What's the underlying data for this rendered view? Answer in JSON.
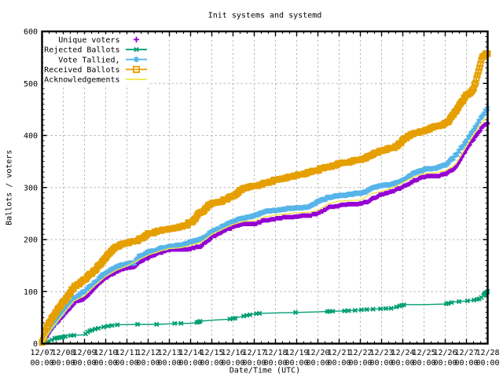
{
  "chart_data": {
    "type": "line",
    "title": "Init systems and systemd",
    "xlabel": "Date/Time (UTC)",
    "ylabel": "Ballots / voters",
    "ylim": [
      0,
      600
    ],
    "y_major_step": 100,
    "y_minor_step": 10,
    "x_minor_per_day": 3,
    "grid": "dashed gray on major ticks",
    "legend_position": "top-left inside",
    "x_unit": "days since 12/07 00:00 UTC",
    "x_ticks": [
      {
        "day": 0,
        "label": "12/07",
        "sub": "00:00"
      },
      {
        "day": 1,
        "label": "12/08",
        "sub": "00:00"
      },
      {
        "day": 2,
        "label": "12/09",
        "sub": "00:00"
      },
      {
        "day": 3,
        "label": "12/10",
        "sub": "00:00"
      },
      {
        "day": 4,
        "label": "12/11",
        "sub": "00:00"
      },
      {
        "day": 5,
        "label": "12/12",
        "sub": "00:00"
      },
      {
        "day": 6,
        "label": "12/13",
        "sub": "00:00"
      },
      {
        "day": 7,
        "label": "12/14",
        "sub": "00:00"
      },
      {
        "day": 8,
        "label": "12/15",
        "sub": "00:00"
      },
      {
        "day": 9,
        "label": "12/16",
        "sub": "00:00"
      },
      {
        "day": 10,
        "label": "12/17",
        "sub": "00:00"
      },
      {
        "day": 11,
        "label": "12/18",
        "sub": "00:00"
      },
      {
        "day": 12,
        "label": "12/19",
        "sub": "00:00"
      },
      {
        "day": 13,
        "label": "12/20",
        "sub": "00:00"
      },
      {
        "day": 14,
        "label": "12/21",
        "sub": "00:00"
      },
      {
        "day": 15,
        "label": "12/22",
        "sub": "00:00"
      },
      {
        "day": 16,
        "label": "12/23",
        "sub": "00:00"
      },
      {
        "day": 17,
        "label": "12/24",
        "sub": "00:00"
      },
      {
        "day": 18,
        "label": "12/25",
        "sub": "00:00"
      },
      {
        "day": 19,
        "label": "12/26",
        "sub": "00:00"
      },
      {
        "day": 20,
        "label": "12/27",
        "sub": "00:00"
      },
      {
        "day": 21,
        "label": "12/28",
        "sub": "00:00"
      }
    ],
    "y_ticks": [
      0,
      100,
      200,
      300,
      400,
      500,
      600
    ],
    "series": [
      {
        "name": "Unique voters",
        "color": "#9400d3",
        "marker": "plus",
        "line": true,
        "dense_markers": true,
        "points": [
          [
            0,
            0
          ],
          [
            0.02,
            1
          ],
          [
            0.25,
            14
          ],
          [
            0.5,
            31
          ],
          [
            0.75,
            43
          ],
          [
            1.0,
            54
          ],
          [
            1.5,
            78
          ],
          [
            2.0,
            86
          ],
          [
            2.5,
            109
          ],
          [
            3.0,
            126
          ],
          [
            3.5,
            137
          ],
          [
            4.0,
            145
          ],
          [
            4.35,
            146
          ],
          [
            4.5,
            154
          ],
          [
            5.0,
            166
          ],
          [
            5.5,
            174
          ],
          [
            6.0,
            179
          ],
          [
            6.5,
            180
          ],
          [
            7.0,
            182
          ],
          [
            7.5,
            188
          ],
          [
            8.0,
            204
          ],
          [
            8.5,
            215
          ],
          [
            9.0,
            224
          ],
          [
            9.5,
            229
          ],
          [
            10.0,
            229
          ],
          [
            10.5,
            237
          ],
          [
            11.0,
            239
          ],
          [
            11.5,
            242
          ],
          [
            12.0,
            244
          ],
          [
            12.5,
            244
          ],
          [
            13.0,
            250
          ],
          [
            13.5,
            261
          ],
          [
            14.0,
            265
          ],
          [
            14.5,
            266
          ],
          [
            15.0,
            267
          ],
          [
            15.5,
            277
          ],
          [
            16.0,
            286
          ],
          [
            16.5,
            291
          ],
          [
            17.0,
            301
          ],
          [
            17.5,
            312
          ],
          [
            18.0,
            320
          ],
          [
            18.5,
            320
          ],
          [
            19.0,
            325
          ],
          [
            19.5,
            339
          ],
          [
            20.0,
            373
          ],
          [
            20.25,
            390
          ],
          [
            20.5,
            401
          ],
          [
            20.75,
            417
          ],
          [
            21.0,
            424
          ]
        ]
      },
      {
        "name": "Rejected Ballots",
        "color": "#009e73",
        "marker": "cross",
        "line": true,
        "dense_markers": false,
        "points": [
          [
            0,
            0
          ],
          [
            0.1,
            2
          ],
          [
            0.35,
            5
          ],
          [
            0.6,
            10
          ],
          [
            1.0,
            13
          ],
          [
            1.2,
            15
          ],
          [
            1.5,
            16
          ],
          [
            2.0,
            17
          ],
          [
            2.2,
            24
          ],
          [
            2.5,
            28
          ],
          [
            3.0,
            33
          ],
          [
            3.5,
            36
          ],
          [
            4.5,
            37
          ],
          [
            5.4,
            37
          ],
          [
            6.0,
            38
          ],
          [
            6.3,
            39
          ],
          [
            7.0,
            39
          ],
          [
            7.35,
            41
          ],
          [
            7.45,
            43
          ],
          [
            8.0,
            45
          ],
          [
            8.8,
            47
          ],
          [
            9.1,
            49
          ],
          [
            9.6,
            54
          ],
          [
            10.15,
            58
          ],
          [
            11.0,
            59
          ],
          [
            12.0,
            60
          ],
          [
            13.0,
            61
          ],
          [
            13.6,
            62
          ],
          [
            14.3,
            63
          ],
          [
            14.8,
            64
          ],
          [
            15.05,
            65
          ],
          [
            15.5,
            66
          ],
          [
            16.0,
            67
          ],
          [
            16.5,
            68
          ],
          [
            16.9,
            73
          ],
          [
            17.1,
            75
          ],
          [
            18.0,
            75
          ],
          [
            19.0,
            76
          ],
          [
            19.4,
            80
          ],
          [
            20.0,
            82
          ],
          [
            20.4,
            84
          ],
          [
            20.6,
            86
          ],
          [
            20.75,
            90
          ],
          [
            20.85,
            95
          ],
          [
            21.0,
            100
          ]
        ],
        "marker_days": [
          0.05,
          0.25,
          0.45,
          0.6,
          0.7,
          0.8,
          0.9,
          1.0,
          1.1,
          1.35,
          1.5,
          2.05,
          2.15,
          2.25,
          2.35,
          2.5,
          2.65,
          2.9,
          3.1,
          3.3,
          3.55,
          4.5,
          5.4,
          6.25,
          6.55,
          7.3,
          7.38,
          7.45,
          8.85,
          9.0,
          9.1,
          9.5,
          9.65,
          9.8,
          10.1,
          10.25,
          11.95,
          13.45,
          13.55,
          13.7,
          14.25,
          14.45,
          14.75,
          15.05,
          15.3,
          15.6,
          15.95,
          16.2,
          16.45,
          16.7,
          16.85,
          16.95,
          17.05,
          19.05,
          19.15,
          19.3,
          19.65,
          20.05,
          20.35,
          20.5,
          20.6,
          20.7,
          20.8,
          20.85,
          20.9,
          20.95,
          21.0
        ]
      },
      {
        "name": "Vote Tallied,",
        "color": "#56b4e9",
        "marker": "star",
        "line": true,
        "dense_markers": true,
        "points": [
          [
            0,
            0
          ],
          [
            0.02,
            1
          ],
          [
            0.25,
            22
          ],
          [
            0.5,
            35
          ],
          [
            0.75,
            48
          ],
          [
            1.0,
            62
          ],
          [
            1.5,
            87
          ],
          [
            2.0,
            100
          ],
          [
            2.5,
            118
          ],
          [
            3.0,
            136
          ],
          [
            3.5,
            147
          ],
          [
            4.0,
            153
          ],
          [
            4.35,
            154
          ],
          [
            4.5,
            165
          ],
          [
            5.0,
            175
          ],
          [
            5.5,
            181
          ],
          [
            6.0,
            186
          ],
          [
            6.5,
            188
          ],
          [
            7.0,
            195
          ],
          [
            7.5,
            200
          ],
          [
            8.0,
            215
          ],
          [
            8.5,
            225
          ],
          [
            9.0,
            234
          ],
          [
            9.5,
            241
          ],
          [
            10.0,
            245
          ],
          [
            10.5,
            253
          ],
          [
            11.0,
            255
          ],
          [
            11.5,
            258
          ],
          [
            12.0,
            260
          ],
          [
            12.5,
            261
          ],
          [
            13.0,
            273
          ],
          [
            13.5,
            280
          ],
          [
            14.0,
            284
          ],
          [
            14.5,
            286
          ],
          [
            15.0,
            288
          ],
          [
            15.5,
            297
          ],
          [
            16.0,
            303
          ],
          [
            16.5,
            305
          ],
          [
            17.0,
            313
          ],
          [
            17.5,
            326
          ],
          [
            18.0,
            334
          ],
          [
            18.5,
            336
          ],
          [
            19.0,
            343
          ],
          [
            19.5,
            362
          ],
          [
            20.0,
            390
          ],
          [
            20.25,
            406
          ],
          [
            20.5,
            420
          ],
          [
            20.75,
            439
          ],
          [
            21.0,
            452
          ]
        ]
      },
      {
        "name": "Received Ballots",
        "color": "#e69f00",
        "marker": "square",
        "line": true,
        "dense_markers": true,
        "points": [
          [
            0,
            0
          ],
          [
            0.02,
            2
          ],
          [
            0.25,
            35
          ],
          [
            0.5,
            50
          ],
          [
            0.75,
            66
          ],
          [
            1.0,
            80
          ],
          [
            1.5,
            108
          ],
          [
            2.0,
            122
          ],
          [
            2.2,
            130
          ],
          [
            2.5,
            142
          ],
          [
            2.8,
            155
          ],
          [
            3.0,
            166
          ],
          [
            3.2,
            175
          ],
          [
            3.5,
            186
          ],
          [
            3.8,
            191
          ],
          [
            4.0,
            194
          ],
          [
            4.35,
            196
          ],
          [
            4.5,
            198
          ],
          [
            5.0,
            210
          ],
          [
            5.5,
            216
          ],
          [
            6.0,
            220
          ],
          [
            6.5,
            223
          ],
          [
            6.8,
            228
          ],
          [
            7.0,
            233
          ],
          [
            7.2,
            238
          ],
          [
            7.35,
            248
          ],
          [
            7.5,
            252
          ],
          [
            7.8,
            263
          ],
          [
            8.0,
            268
          ],
          [
            8.5,
            274
          ],
          [
            9.0,
            284
          ],
          [
            9.3,
            292
          ],
          [
            9.5,
            297
          ],
          [
            10.0,
            302
          ],
          [
            10.3,
            305
          ],
          [
            10.5,
            308
          ],
          [
            11.0,
            313
          ],
          [
            11.5,
            318
          ],
          [
            12.0,
            322
          ],
          [
            12.5,
            327
          ],
          [
            13.0,
            334
          ],
          [
            13.5,
            338
          ],
          [
            14.0,
            345
          ],
          [
            14.5,
            348
          ],
          [
            15.0,
            352
          ],
          [
            15.5,
            362
          ],
          [
            16.0,
            370
          ],
          [
            16.5,
            376
          ],
          [
            16.8,
            382
          ],
          [
            17.0,
            390
          ],
          [
            17.2,
            397
          ],
          [
            17.5,
            403
          ],
          [
            18.0,
            409
          ],
          [
            18.5,
            416
          ],
          [
            19.0,
            422
          ],
          [
            19.2,
            430
          ],
          [
            19.5,
            447
          ],
          [
            19.75,
            462
          ],
          [
            20.0,
            478
          ],
          [
            20.25,
            484
          ],
          [
            20.4,
            497
          ],
          [
            20.5,
            512
          ],
          [
            20.65,
            535
          ],
          [
            20.75,
            550
          ],
          [
            20.9,
            555
          ],
          [
            21.0,
            557
          ]
        ]
      },
      {
        "name": "Acknowledgements",
        "color": "#f0e442",
        "marker": "none",
        "line": true,
        "dense_markers": false,
        "points": [
          [
            0,
            0
          ],
          [
            0.02,
            1
          ],
          [
            0.25,
            17
          ],
          [
            0.5,
            32
          ],
          [
            0.75,
            44
          ],
          [
            1.0,
            57
          ],
          [
            1.5,
            82
          ],
          [
            2.0,
            92
          ],
          [
            2.5,
            112
          ],
          [
            3.0,
            129
          ],
          [
            3.5,
            141
          ],
          [
            4.0,
            149
          ],
          [
            4.5,
            160
          ],
          [
            5.0,
            170
          ],
          [
            5.5,
            177
          ],
          [
            6.0,
            183
          ],
          [
            6.5,
            184
          ],
          [
            7.0,
            189
          ],
          [
            7.5,
            195
          ],
          [
            8.0,
            210
          ],
          [
            8.5,
            220
          ],
          [
            9.0,
            229
          ],
          [
            9.5,
            235
          ],
          [
            10.0,
            236
          ],
          [
            10.5,
            244
          ],
          [
            11.0,
            247
          ],
          [
            11.5,
            249
          ],
          [
            12.0,
            252
          ],
          [
            12.5,
            252
          ],
          [
            13.0,
            256
          ],
          [
            13.5,
            269
          ],
          [
            14.0,
            274
          ],
          [
            14.5,
            275
          ],
          [
            15.0,
            276
          ],
          [
            15.5,
            288
          ],
          [
            16.0,
            293
          ],
          [
            16.5,
            299
          ],
          [
            17.0,
            309
          ],
          [
            17.5,
            320
          ],
          [
            18.0,
            327
          ],
          [
            18.5,
            328
          ],
          [
            19.0,
            332
          ],
          [
            19.5,
            345
          ],
          [
            20.0,
            379
          ],
          [
            20.25,
            396
          ],
          [
            20.5,
            411
          ],
          [
            20.75,
            426
          ],
          [
            21.0,
            436
          ]
        ]
      }
    ],
    "colors": {
      "grid": "#b8b8b8",
      "border": "#000000",
      "text": "#000000",
      "background": "#ffffff"
    }
  }
}
